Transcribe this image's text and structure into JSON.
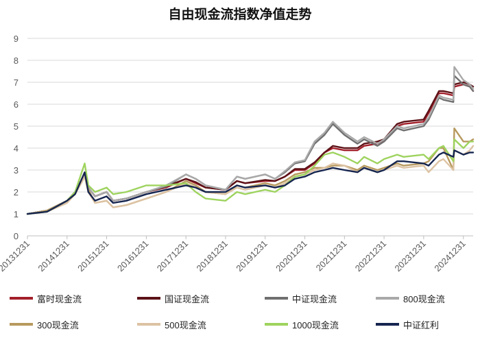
{
  "chart_data": {
    "type": "line",
    "title": "自由现金流指数净值走势",
    "xlabel": "",
    "ylabel": "",
    "ylim": [
      0,
      9
    ],
    "yticks": [
      "0",
      "1",
      "2",
      "3",
      "4",
      "5",
      "6",
      "7",
      "8",
      "9"
    ],
    "xticks": [
      "20131231",
      "20141231",
      "20151231",
      "20161231",
      "20171231",
      "20181231",
      "20191231",
      "20201231",
      "20211231",
      "20221231",
      "20231231",
      "20241231"
    ],
    "xlim": [
      "20131231",
      "20250331"
    ],
    "grid": "horizontal",
    "legend_position": "bottom",
    "x": [
      "20131231",
      "20140630",
      "20141231",
      "20150315",
      "20150612",
      "20150715",
      "20150915",
      "20151231",
      "20160229",
      "20160630",
      "20161231",
      "20170630",
      "20171231",
      "20180331",
      "20180630",
      "20181231",
      "20190415",
      "20190630",
      "20191231",
      "20200331",
      "20200630",
      "20200930",
      "20201231",
      "20210331",
      "20210630",
      "20210915",
      "20211231",
      "20220430",
      "20220630",
      "20221031",
      "20221231",
      "20230430",
      "20230630",
      "20231231",
      "20240215",
      "20240520",
      "20240630",
      "20240930",
      "20241008",
      "20241231",
      "20250228",
      "20250331"
    ],
    "series": [
      {
        "name": "富时现金流",
        "color": "#a31f2a",
        "values": [
          1.0,
          1.15,
          1.6,
          2.0,
          2.8,
          2.2,
          1.8,
          2.0,
          1.6,
          1.7,
          2.0,
          2.2,
          2.6,
          2.4,
          2.2,
          2.1,
          2.5,
          2.4,
          2.5,
          2.5,
          2.7,
          3.0,
          3.0,
          3.3,
          3.8,
          4.0,
          3.9,
          3.9,
          4.1,
          4.2,
          4.3,
          5.0,
          5.1,
          5.2,
          5.6,
          6.5,
          6.5,
          6.4,
          6.8,
          6.9,
          6.8,
          6.6
        ]
      },
      {
        "name": "国证现金流",
        "color": "#5c1217",
        "values": [
          1.0,
          1.15,
          1.6,
          2.0,
          2.8,
          2.2,
          1.8,
          2.0,
          1.6,
          1.7,
          2.0,
          2.25,
          2.6,
          2.45,
          2.2,
          2.1,
          2.5,
          2.4,
          2.55,
          2.5,
          2.7,
          3.05,
          3.05,
          3.35,
          3.8,
          4.1,
          4.0,
          4.0,
          4.2,
          4.3,
          4.4,
          5.1,
          5.2,
          5.3,
          5.7,
          6.6,
          6.6,
          6.5,
          6.9,
          7.0,
          6.9,
          6.8
        ]
      },
      {
        "name": "中证现金流",
        "color": "#707070",
        "values": [
          1.0,
          1.15,
          1.6,
          2.0,
          2.8,
          2.2,
          1.8,
          2.0,
          1.6,
          1.7,
          2.0,
          2.25,
          2.8,
          2.6,
          2.3,
          2.1,
          2.7,
          2.6,
          2.8,
          2.6,
          2.9,
          3.3,
          3.4,
          4.2,
          4.6,
          5.1,
          4.6,
          4.2,
          4.4,
          4.1,
          4.3,
          4.9,
          4.8,
          5.0,
          5.3,
          6.3,
          6.2,
          6.1,
          7.3,
          6.9,
          6.8,
          6.6
        ]
      },
      {
        "name": "800现金流",
        "color": "#a9a9a9",
        "values": [
          1.0,
          1.15,
          1.6,
          2.0,
          2.8,
          2.2,
          1.8,
          2.0,
          1.6,
          1.7,
          2.0,
          2.3,
          2.8,
          2.6,
          2.3,
          2.1,
          2.7,
          2.6,
          2.8,
          2.6,
          2.95,
          3.35,
          3.45,
          4.3,
          4.7,
          5.2,
          4.7,
          4.3,
          4.5,
          4.2,
          4.4,
          5.0,
          4.9,
          5.1,
          5.4,
          6.4,
          6.3,
          6.2,
          7.7,
          7.1,
          6.9,
          6.7
        ]
      },
      {
        "name": "300现金流",
        "color": "#b7995e",
        "values": [
          1.0,
          1.15,
          1.6,
          1.9,
          2.7,
          2.1,
          1.5,
          1.6,
          1.3,
          1.4,
          1.7,
          2.0,
          2.5,
          2.3,
          2.0,
          1.9,
          2.3,
          2.2,
          2.4,
          2.3,
          2.5,
          2.8,
          2.9,
          3.1,
          3.1,
          3.2,
          3.2,
          3.0,
          3.2,
          3.0,
          3.1,
          3.3,
          3.2,
          3.3,
          3.4,
          4.0,
          4.0,
          3.0,
          4.9,
          4.3,
          4.3,
          4.4
        ]
      },
      {
        "name": "500现金流",
        "color": "#ddc3a3",
        "values": [
          1.0,
          1.1,
          1.5,
          1.9,
          2.7,
          2.0,
          1.5,
          1.6,
          1.3,
          1.4,
          1.7,
          2.0,
          2.4,
          2.2,
          2.0,
          1.9,
          2.2,
          2.1,
          2.3,
          2.2,
          2.4,
          2.7,
          2.8,
          3.0,
          3.1,
          3.3,
          3.2,
          2.9,
          3.1,
          2.9,
          3.0,
          3.2,
          3.1,
          3.2,
          2.9,
          3.4,
          3.5,
          3.0,
          3.9,
          3.7,
          3.9,
          4.1
        ]
      },
      {
        "name": "1000现金流",
        "color": "#9ed35e",
        "values": [
          1.0,
          1.1,
          1.6,
          2.0,
          3.3,
          2.3,
          2.0,
          2.2,
          1.9,
          2.0,
          2.3,
          2.3,
          2.4,
          2.0,
          1.7,
          1.6,
          2.0,
          1.9,
          2.1,
          2.0,
          2.3,
          2.7,
          2.8,
          3.2,
          3.7,
          3.8,
          3.6,
          3.3,
          3.6,
          3.3,
          3.5,
          3.7,
          3.6,
          3.7,
          3.5,
          4.0,
          4.1,
          3.4,
          4.4,
          4.0,
          4.3,
          4.3
        ]
      },
      {
        "name": "中证红利",
        "color": "#16254f",
        "values": [
          1.0,
          1.1,
          1.6,
          1.9,
          2.9,
          2.0,
          1.6,
          1.8,
          1.5,
          1.6,
          1.9,
          2.1,
          2.3,
          2.2,
          2.0,
          2.0,
          2.3,
          2.2,
          2.3,
          2.2,
          2.3,
          2.6,
          2.7,
          2.9,
          3.0,
          3.1,
          3.0,
          2.9,
          3.1,
          2.9,
          3.0,
          3.4,
          3.4,
          3.3,
          3.2,
          3.7,
          3.8,
          3.6,
          3.9,
          3.7,
          3.8,
          3.8
        ]
      }
    ]
  }
}
